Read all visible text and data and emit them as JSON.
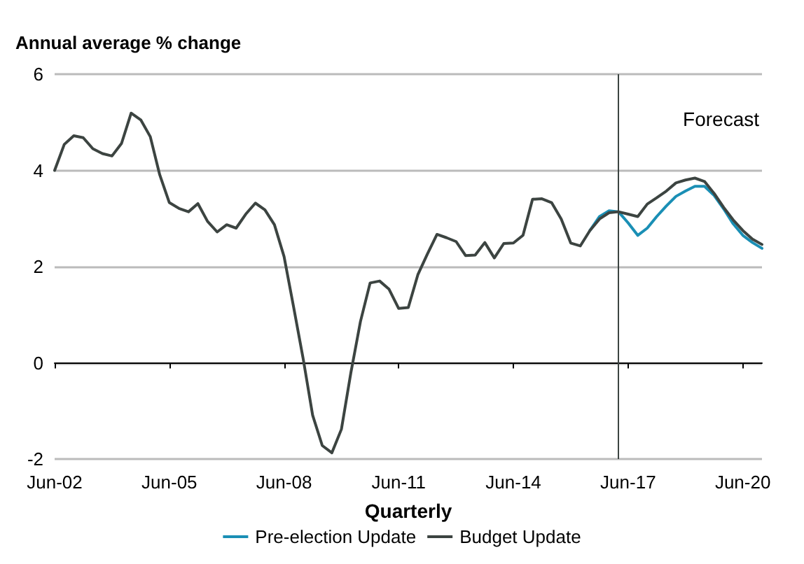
{
  "chart_data": {
    "type": "line",
    "ylabel": "Annual average % change",
    "xlabel": "Quarterly",
    "x": [
      "2002-06",
      "2002-09",
      "2002-12",
      "2003-03",
      "2003-06",
      "2003-09",
      "2003-12",
      "2004-03",
      "2004-06",
      "2004-09",
      "2004-12",
      "2005-03",
      "2005-06",
      "2005-09",
      "2005-12",
      "2006-03",
      "2006-06",
      "2006-09",
      "2006-12",
      "2007-03",
      "2007-06",
      "2007-09",
      "2007-12",
      "2008-03",
      "2008-06",
      "2008-09",
      "2008-12",
      "2009-03",
      "2009-06",
      "2009-09",
      "2009-12",
      "2010-03",
      "2010-06",
      "2010-09",
      "2010-12",
      "2011-03",
      "2011-06",
      "2011-09",
      "2011-12",
      "2012-03",
      "2012-06",
      "2012-09",
      "2012-12",
      "2013-03",
      "2013-06",
      "2013-09",
      "2013-12",
      "2014-03",
      "2014-06",
      "2014-09",
      "2014-12",
      "2015-03",
      "2015-06",
      "2015-09",
      "2015-12",
      "2016-03",
      "2016-06",
      "2016-09",
      "2016-12",
      "2017-03",
      "2017-06",
      "2017-09",
      "2017-12",
      "2018-03",
      "2018-06",
      "2018-09",
      "2018-12",
      "2019-03",
      "2019-06",
      "2019-09",
      "2019-12",
      "2020-03",
      "2020-06",
      "2020-09",
      "2020-12"
    ],
    "series": [
      {
        "name": "Pre-election Update",
        "color": "#1a8fb5",
        "values": [
          null,
          null,
          null,
          null,
          null,
          null,
          null,
          null,
          null,
          null,
          null,
          null,
          null,
          null,
          null,
          null,
          null,
          null,
          null,
          null,
          null,
          null,
          null,
          null,
          null,
          null,
          null,
          null,
          null,
          null,
          null,
          null,
          null,
          null,
          null,
          null,
          null,
          null,
          null,
          null,
          null,
          null,
          null,
          null,
          null,
          null,
          null,
          null,
          null,
          null,
          null,
          null,
          null,
          null,
          null,
          null,
          2.75,
          3.04,
          3.16,
          3.14,
          2.91,
          2.65,
          2.8,
          3.04,
          3.26,
          3.46,
          3.57,
          3.67,
          3.67,
          3.48,
          3.2,
          2.89,
          2.65,
          2.5,
          2.38
        ]
      },
      {
        "name": "Budget Update",
        "color": "#3c4441",
        "values": [
          4.0,
          4.54,
          4.72,
          4.68,
          4.45,
          4.35,
          4.3,
          4.56,
          5.19,
          5.05,
          4.7,
          3.91,
          3.33,
          3.21,
          3.14,
          3.31,
          2.94,
          2.72,
          2.87,
          2.8,
          3.09,
          3.32,
          3.18,
          2.87,
          2.21,
          1.15,
          0.08,
          -1.09,
          -1.72,
          -1.87,
          -1.38,
          -0.21,
          0.86,
          1.66,
          1.7,
          1.53,
          1.13,
          1.15,
          1.83,
          2.26,
          2.67,
          2.6,
          2.52,
          2.23,
          2.24,
          2.5,
          2.18,
          2.48,
          2.49,
          2.65,
          3.4,
          3.41,
          3.33,
          2.99,
          2.49,
          2.43,
          2.75,
          2.99,
          3.12,
          3.14,
          3.09,
          3.04,
          3.3,
          3.43,
          3.57,
          3.74,
          3.8,
          3.84,
          3.77,
          3.52,
          3.23,
          2.97,
          2.75,
          2.57,
          2.46
        ]
      }
    ],
    "xlim": [
      "2002-06",
      "2020-12"
    ],
    "xticks": [
      {
        "value": "2002-06",
        "label": "Jun-02"
      },
      {
        "value": "2005-06",
        "label": "Jun-05"
      },
      {
        "value": "2008-06",
        "label": "Jun-08"
      },
      {
        "value": "2011-06",
        "label": "Jun-11"
      },
      {
        "value": "2014-06",
        "label": "Jun-14"
      },
      {
        "value": "2017-06",
        "label": "Jun-17"
      },
      {
        "value": "2020-06",
        "label": "Jun-20"
      }
    ],
    "ylim": [
      -2,
      6
    ],
    "yticks": [
      -2,
      0,
      2,
      4,
      6
    ],
    "grid": "y",
    "legend": "bottom",
    "marker": "none",
    "line_style": "solid",
    "ref_lines": [
      {
        "axis": "x",
        "value": "2017-03",
        "color": "#3c4441"
      }
    ],
    "annotations": [
      "Forecast"
    ]
  }
}
